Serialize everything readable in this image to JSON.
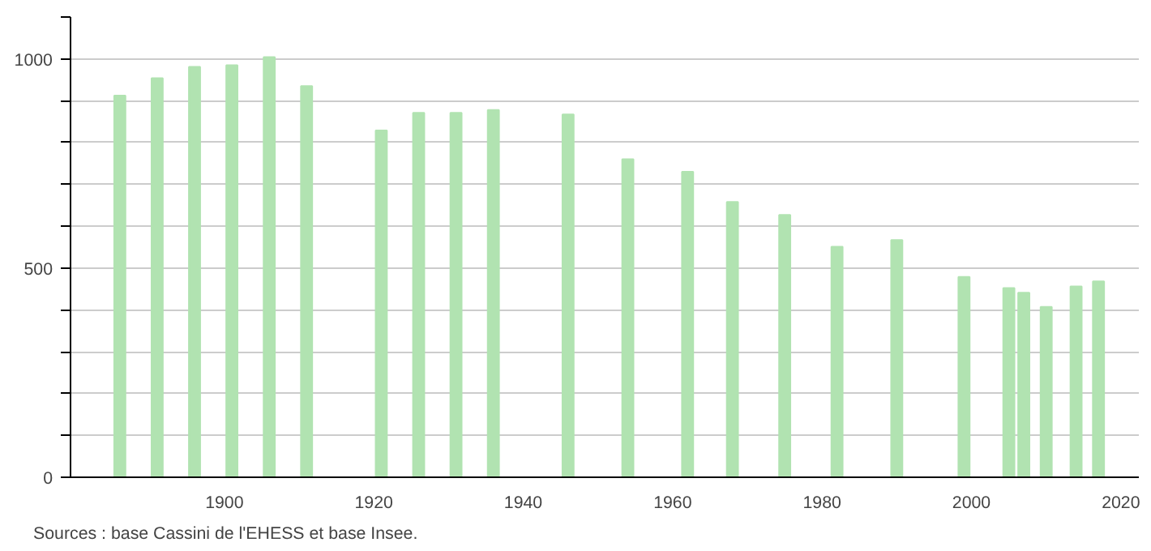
{
  "chart_data": {
    "type": "bar",
    "color": "#b1e3b1",
    "x": [
      1886,
      1891,
      1896,
      1901,
      1906,
      1911,
      1921,
      1926,
      1931,
      1936,
      1946,
      1954,
      1962,
      1968,
      1975,
      1982,
      1990,
      1999,
      2005,
      2007,
      2010,
      2014,
      2017
    ],
    "values": [
      912,
      954,
      981,
      985,
      1004,
      935,
      829,
      871,
      871,
      878,
      867,
      760,
      730,
      658,
      627,
      551,
      567,
      479,
      452,
      441,
      407,
      456,
      468
    ],
    "xlim": [
      1879.4,
      2022.4
    ],
    "xticks": [
      1900,
      1920,
      1940,
      1960,
      1980,
      2000,
      2020
    ],
    "ylim": [
      0,
      1100
    ],
    "yticks": [
      0,
      {
        "value": 100,
        "label": null
      },
      {
        "value": 200,
        "label": null
      },
      {
        "value": 300,
        "label": null
      },
      {
        "value": 400,
        "label": null
      },
      500,
      {
        "value": 600,
        "label": null
      },
      {
        "value": 700,
        "label": null
      },
      {
        "value": 800,
        "label": null
      },
      {
        "value": 900,
        "label": null
      },
      1000,
      {
        "value": 1100,
        "label": null
      }
    ],
    "grid": "y",
    "annotations": [
      "Sources : base Cassini de l'EHESS et base Insee."
    ]
  }
}
